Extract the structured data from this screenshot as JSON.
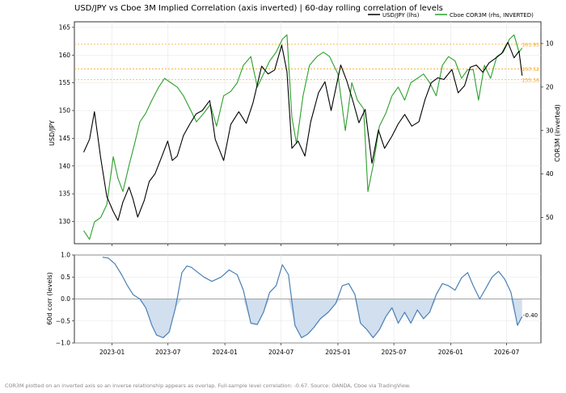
{
  "title": "USD/JPY vs Cboe 3M Implied Correlation (axis inverted)  |  60-day rolling correlation of levels",
  "footnote": "COR3M plotted on an inverted axis so an inverse relationship appears as overlap. Full-sample level correlation: -0.67. Source: OANDA, Cboe via TradingView.",
  "colors": {
    "usdjpy": "#000000",
    "cor3m": "#2ca02c",
    "corr": "#4a7fb5",
    "corr_fill": "#c9d9ec",
    "hlines": "#f5a623"
  },
  "chart_data": [
    {
      "type": "line",
      "panel": "top",
      "ylabel": "USD/JPY",
      "y2label": "COR3M (inverted)",
      "ylim": [
        126,
        166
      ],
      "y2lim": [
        5,
        56
      ],
      "y2_inverted": true,
      "yticks": [
        "130",
        "135",
        "140",
        "145",
        "150",
        "155",
        "160",
        "165"
      ],
      "y2ticks": [
        "10",
        "20",
        "30",
        "40",
        "50"
      ],
      "grid": true,
      "legend": "top-right",
      "series": [
        {
          "name": "USD/JPY (lhs)",
          "axis": "left",
          "x": [
            "2022-10-01",
            "2022-10-20",
            "2022-11-05",
            "2022-11-25",
            "2022-12-15",
            "2023-01-05",
            "2023-01-20",
            "2023-02-05",
            "2023-02-25",
            "2023-03-10",
            "2023-03-25",
            "2023-04-15",
            "2023-05-01",
            "2023-05-20",
            "2023-06-10",
            "2023-06-30",
            "2023-07-15",
            "2023-07-31",
            "2023-08-20",
            "2023-09-10",
            "2023-09-30",
            "2023-10-20",
            "2023-11-13",
            "2023-12-01",
            "2023-12-28",
            "2024-01-20",
            "2024-02-15",
            "2024-03-10",
            "2024-04-01",
            "2024-04-29",
            "2024-05-20",
            "2024-06-10",
            "2024-07-03",
            "2024-07-20",
            "2024-08-05",
            "2024-08-25",
            "2024-09-16",
            "2024-10-05",
            "2024-10-30",
            "2024-11-20",
            "2024-12-10",
            "2025-01-10",
            "2025-01-30",
            "2025-02-20",
            "2025-03-10",
            "2025-03-30",
            "2025-04-21",
            "2025-05-12",
            "2025-06-01",
            "2025-06-25",
            "2025-07-15",
            "2025-08-05",
            "2025-08-28",
            "2025-09-20",
            "2025-10-10",
            "2025-10-30",
            "2025-11-20",
            "2025-12-10",
            "2026-01-05",
            "2026-01-25",
            "2026-02-15",
            "2026-03-05",
            "2026-03-25",
            "2026-04-15",
            "2026-05-05",
            "2026-05-25",
            "2026-06-15",
            "2026-07-05",
            "2026-07-25",
            "2026-08-10",
            "2026-08-20"
          ],
          "values": [
            142.5,
            144.8,
            149.8,
            141.5,
            134.5,
            131.8,
            130.2,
            133.5,
            136.2,
            134.0,
            130.8,
            133.8,
            137.2,
            138.6,
            141.6,
            144.5,
            141.0,
            141.8,
            145.5,
            147.6,
            149.4,
            150.0,
            151.8,
            144.8,
            141.0,
            147.5,
            149.8,
            147.7,
            151.4,
            158.0,
            156.6,
            157.3,
            161.8,
            157.0,
            143.2,
            144.5,
            141.8,
            148.0,
            153.2,
            155.2,
            150.0,
            158.2,
            155.3,
            151.4,
            147.8,
            150.2,
            140.5,
            146.5,
            143.2,
            145.4,
            147.6,
            149.3,
            147.2,
            148.0,
            152.0,
            155.0,
            155.9,
            155.6,
            157.4,
            153.2,
            154.5,
            157.8,
            158.2,
            156.9,
            158.6,
            159.4,
            160.3,
            162.3,
            159.5,
            160.7,
            156.3
          ]
        },
        {
          "name": "Cboe COR3M (rhs, INVERTED)",
          "axis": "right",
          "x": [
            "2022-10-01",
            "2022-10-20",
            "2022-11-05",
            "2022-11-25",
            "2022-12-15",
            "2023-01-05",
            "2023-01-20",
            "2023-02-05",
            "2023-02-25",
            "2023-03-15",
            "2023-04-01",
            "2023-04-20",
            "2023-05-10",
            "2023-06-01",
            "2023-06-20",
            "2023-07-10",
            "2023-07-31",
            "2023-08-20",
            "2023-09-10",
            "2023-10-01",
            "2023-10-25",
            "2023-11-15",
            "2023-12-05",
            "2023-12-28",
            "2024-01-20",
            "2024-02-10",
            "2024-03-01",
            "2024-03-25",
            "2024-04-15",
            "2024-05-05",
            "2024-05-25",
            "2024-06-15",
            "2024-07-05",
            "2024-07-20",
            "2024-08-05",
            "2024-08-20",
            "2024-09-10",
            "2024-10-01",
            "2024-10-25",
            "2024-11-15",
            "2024-12-05",
            "2025-01-01",
            "2025-01-25",
            "2025-02-15",
            "2025-03-05",
            "2025-03-25",
            "2025-04-08",
            "2025-04-25",
            "2025-05-15",
            "2025-06-05",
            "2025-06-25",
            "2025-07-15",
            "2025-08-05",
            "2025-08-25",
            "2025-09-15",
            "2025-10-05",
            "2025-10-25",
            "2025-11-15",
            "2025-12-05",
            "2025-12-25",
            "2026-01-15",
            "2026-02-05",
            "2026-02-25",
            "2026-03-15",
            "2026-04-01",
            "2026-04-20",
            "2026-05-10",
            "2026-05-30",
            "2026-06-20",
            "2026-07-10",
            "2026-07-25",
            "2026-08-10",
            "2026-08-20"
          ],
          "values": [
            53,
            55,
            51,
            50,
            47,
            36,
            41,
            44,
            38,
            33,
            28,
            26,
            23,
            20,
            18,
            19,
            20,
            22,
            25,
            28,
            26,
            24,
            29,
            22,
            21,
            19,
            15,
            13,
            20,
            17,
            14,
            12,
            9,
            8,
            27,
            33,
            22,
            15,
            13,
            12,
            13,
            17,
            30,
            19,
            23,
            25,
            44,
            38,
            29,
            26,
            22,
            20,
            23,
            19,
            18,
            17,
            19,
            22,
            15,
            13,
            14,
            18,
            16,
            16,
            23,
            15,
            18,
            13,
            12,
            9,
            8,
            12,
            11
          ]
        }
      ],
      "hlines": [
        {
          "value": 161.95,
          "label": "161.95"
        },
        {
          "value": 157.52,
          "label": "157.52"
        },
        {
          "value": 155.56,
          "label": "155.56"
        }
      ]
    },
    {
      "type": "area",
      "panel": "bottom",
      "ylabel": "60d corr (levels)",
      "ylim": [
        -1.0,
        1.0
      ],
      "yticks": [
        "−1.0",
        "−0.5",
        "0.0",
        "0.5",
        "1.0"
      ],
      "xticks": [
        "2023-01",
        "2023-07",
        "2024-01",
        "2024-07",
        "2025-01",
        "2025-07",
        "2026-01",
        "2026-07"
      ],
      "grid": true,
      "last_value_label": "-0.40",
      "series": [
        {
          "name": "",
          "x": [
            "2022-12-01",
            "2022-12-20",
            "2023-01-10",
            "2023-02-01",
            "2023-02-20",
            "2023-03-10",
            "2023-04-01",
            "2023-04-20",
            "2023-05-10",
            "2023-05-25",
            "2023-06-15",
            "2023-07-05",
            "2023-07-25",
            "2023-08-15",
            "2023-08-31",
            "2023-09-15",
            "2023-10-01",
            "2023-10-25",
            "2023-11-20",
            "2023-12-20",
            "2024-01-15",
            "2024-02-10",
            "2024-03-01",
            "2024-03-25",
            "2024-04-15",
            "2024-05-05",
            "2024-05-25",
            "2024-06-15",
            "2024-07-05",
            "2024-07-25",
            "2024-08-15",
            "2024-09-05",
            "2024-09-25",
            "2024-10-15",
            "2024-11-05",
            "2024-12-01",
            "2024-12-25",
            "2025-01-15",
            "2025-02-05",
            "2025-02-25",
            "2025-03-15",
            "2025-04-05",
            "2025-04-25",
            "2025-05-15",
            "2025-06-05",
            "2025-06-25",
            "2025-07-15",
            "2025-08-05",
            "2025-08-25",
            "2025-09-15",
            "2025-10-05",
            "2025-10-25",
            "2025-11-15",
            "2025-12-05",
            "2025-12-25",
            "2026-01-15",
            "2026-02-05",
            "2026-02-25",
            "2026-03-15",
            "2026-04-05",
            "2026-04-25",
            "2026-05-15",
            "2026-06-05",
            "2026-06-25",
            "2026-07-15",
            "2026-08-05",
            "2026-08-20"
          ],
          "values": [
            0.95,
            0.93,
            0.8,
            0.55,
            0.3,
            0.1,
            0.0,
            -0.2,
            -0.6,
            -0.82,
            -0.88,
            -0.75,
            -0.2,
            0.6,
            0.75,
            0.72,
            0.63,
            0.5,
            0.4,
            0.5,
            0.66,
            0.55,
            0.2,
            -0.55,
            -0.58,
            -0.3,
            0.15,
            0.3,
            0.78,
            0.55,
            -0.6,
            -0.88,
            -0.8,
            -0.65,
            -0.45,
            -0.3,
            -0.1,
            0.3,
            0.35,
            0.1,
            -0.55,
            -0.7,
            -0.88,
            -0.7,
            -0.4,
            -0.2,
            -0.55,
            -0.3,
            -0.55,
            -0.25,
            -0.45,
            -0.3,
            0.1,
            0.35,
            0.3,
            0.2,
            0.48,
            0.6,
            0.3,
            0.0,
            0.25,
            0.5,
            0.63,
            0.45,
            0.15,
            -0.6,
            -0.4
          ]
        }
      ]
    }
  ]
}
